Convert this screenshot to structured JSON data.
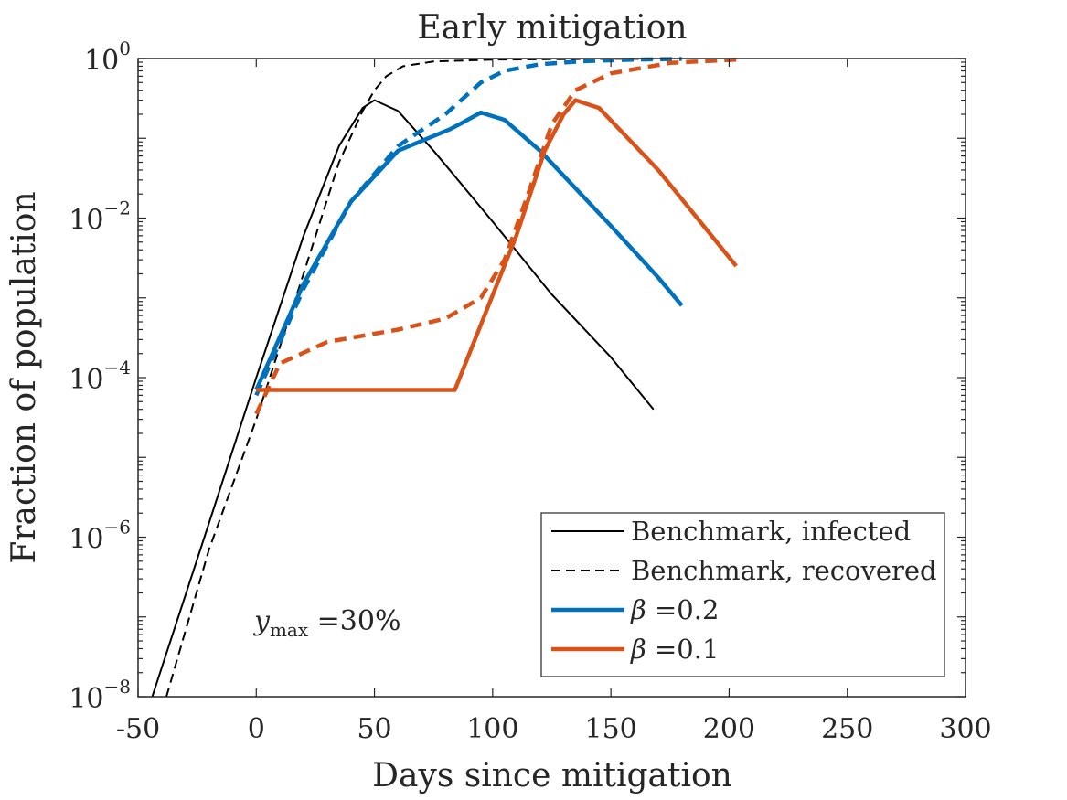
{
  "chart_data": {
    "type": "line",
    "title": "Early mitigation",
    "xlabel": "Days since mitigation",
    "ylabel": "Fraction of population",
    "xlim": [
      -50,
      300
    ],
    "ylim": [
      1e-08,
      1
    ],
    "yscale": "log",
    "grid": false,
    "legend_position": "bottom-right",
    "x_ticks": [
      -50,
      0,
      50,
      100,
      150,
      200,
      250,
      300
    ],
    "x_tick_labels": [
      "-50",
      "0",
      "50",
      "100",
      "150",
      "200",
      "250",
      "300"
    ],
    "y_ticks": [
      1e-08,
      1e-06,
      0.0001,
      0.01,
      1
    ],
    "y_tick_labels": [
      {
        "base": "10",
        "exp": "−8"
      },
      {
        "base": "10",
        "exp": "−6"
      },
      {
        "base": "10",
        "exp": "−4"
      },
      {
        "base": "10",
        "exp": "−2"
      },
      {
        "base": "10",
        "exp": "0"
      }
    ],
    "annotation": {
      "symbol": "y",
      "subscript": "max",
      "text": " =30%"
    },
    "series": [
      {
        "name": "Benchmark, infected",
        "color": "#000000",
        "style": "solid",
        "width": 2,
        "points": [
          [
            -44,
            1e-08
          ],
          [
            -20,
            1.5e-06
          ],
          [
            0,
            0.0001
          ],
          [
            20,
            0.006
          ],
          [
            35,
            0.08
          ],
          [
            45,
            0.24
          ],
          [
            50,
            0.3
          ],
          [
            60,
            0.22
          ],
          [
            75,
            0.07
          ],
          [
            100,
            0.009
          ],
          [
            125,
            0.0011
          ],
          [
            150,
            0.00018
          ],
          [
            168,
            4e-05
          ]
        ]
      },
      {
        "name": "Benchmark, recovered",
        "color": "#000000",
        "style": "dashed",
        "width": 2,
        "points": [
          [
            -38,
            1e-08
          ],
          [
            -20,
            7e-07
          ],
          [
            0,
            3e-05
          ],
          [
            20,
            0.002
          ],
          [
            35,
            0.05
          ],
          [
            45,
            0.22
          ],
          [
            50,
            0.4
          ],
          [
            55,
            0.6
          ],
          [
            62,
            0.8
          ],
          [
            75,
            0.92
          ],
          [
            100,
            0.97
          ],
          [
            150,
            0.99
          ],
          [
            170,
            0.99
          ]
        ]
      },
      {
        "name": "β =0.2",
        "label": {
          "symbol": "β",
          "text": " =0.2"
        },
        "color": "#0072BD",
        "style": "solid",
        "width": 4.5,
        "points": [
          [
            0,
            7e-05
          ],
          [
            20,
            0.0015
          ],
          [
            40,
            0.016
          ],
          [
            60,
            0.07
          ],
          [
            82,
            0.13
          ],
          [
            86,
            0.15
          ],
          [
            95,
            0.21
          ],
          [
            105,
            0.17
          ],
          [
            120,
            0.07
          ],
          [
            150,
            0.008
          ],
          [
            170,
            0.0018
          ],
          [
            180,
            0.0008
          ]
        ]
      },
      {
        "name": "β =0.2, recovered",
        "legend": false,
        "color": "#0072BD",
        "style": "dashed",
        "width": 4.5,
        "points": [
          [
            0,
            6e-05
          ],
          [
            20,
            0.0013
          ],
          [
            40,
            0.016
          ],
          [
            60,
            0.08
          ],
          [
            80,
            0.2
          ],
          [
            95,
            0.5
          ],
          [
            105,
            0.7
          ],
          [
            120,
            0.85
          ],
          [
            140,
            0.93
          ],
          [
            160,
            0.97
          ],
          [
            180,
            0.99
          ]
        ]
      },
      {
        "name": "β =0.1",
        "label": {
          "symbol": "β",
          "text": " =0.1"
        },
        "color": "#D95319",
        "style": "solid",
        "width": 4.5,
        "points": [
          [
            0,
            7e-05
          ],
          [
            84,
            7e-05
          ],
          [
            110,
            0.006
          ],
          [
            122,
            0.07
          ],
          [
            130,
            0.2
          ],
          [
            135,
            0.3
          ],
          [
            145,
            0.24
          ],
          [
            170,
            0.04
          ],
          [
            203,
            0.0025
          ]
        ]
      },
      {
        "name": "β =0.1, recovered",
        "legend": false,
        "color": "#D95319",
        "style": "dashed",
        "width": 4.5,
        "points": [
          [
            0,
            3.5e-05
          ],
          [
            10,
            0.00015
          ],
          [
            30,
            0.00028
          ],
          [
            60,
            0.0004
          ],
          [
            80,
            0.00055
          ],
          [
            95,
            0.001
          ],
          [
            105,
            0.003
          ],
          [
            115,
            0.02
          ],
          [
            125,
            0.15
          ],
          [
            135,
            0.4
          ],
          [
            150,
            0.65
          ],
          [
            175,
            0.88
          ],
          [
            203,
            0.97
          ]
        ]
      }
    ]
  }
}
